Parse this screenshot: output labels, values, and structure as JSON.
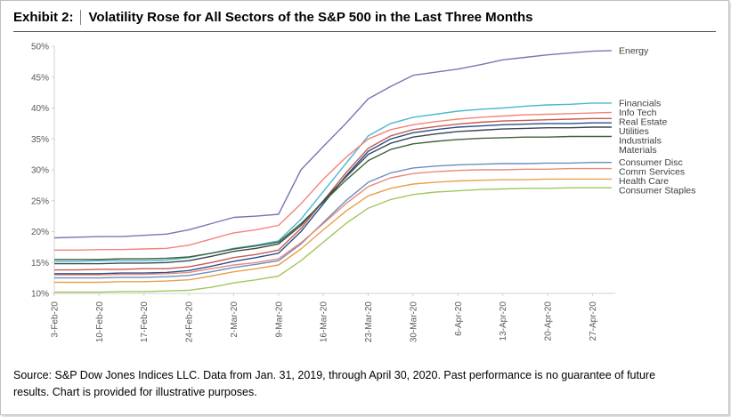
{
  "title": {
    "exhibit": "Exhibit 2:",
    "text": "Volatility Rose for All Sectors of the S&P 500 in the Last Three Months"
  },
  "footer": {
    "line1": "Source: S&P Dow Jones Indices LLC.  Data from Jan. 31, 2019, through April 30, 2020.  Past performance is no guarantee of future",
    "line2": "results.  Chart is provided for illustrative purposes."
  },
  "colors": {
    "axis": "#D0D0D0",
    "tick_text": "#595959",
    "series_label_text": "#3F3F3F",
    "title_rule": "#595959"
  },
  "chart_data": {
    "type": "line",
    "title": "Volatility Rose for All Sectors of the S&P 500 in the Last Three Months",
    "xlabel": "",
    "ylabel": "",
    "grid": false,
    "legend_position": "right-of-lines",
    "ylim": [
      10,
      50
    ],
    "xmax": 87,
    "y_ticks": [
      {
        "label": "10%",
        "value": 10
      },
      {
        "label": "15%",
        "value": 15
      },
      {
        "label": "20%",
        "value": 20
      },
      {
        "label": "25%",
        "value": 25
      },
      {
        "label": "30%",
        "value": 30
      },
      {
        "label": "35%",
        "value": 35
      },
      {
        "label": "40%",
        "value": 40
      },
      {
        "label": "45%",
        "value": 45
      },
      {
        "label": "50%",
        "value": 50
      }
    ],
    "x_ticks": [
      {
        "label": "3-Feb-20",
        "day": 0
      },
      {
        "label": "10-Feb-20",
        "day": 7
      },
      {
        "label": "17-Feb-20",
        "day": 14
      },
      {
        "label": "24-Feb-20",
        "day": 21
      },
      {
        "label": "2-Mar-20",
        "day": 28
      },
      {
        "label": "9-Mar-20",
        "day": 35
      },
      {
        "label": "16-Mar-20",
        "day": 42
      },
      {
        "label": "23-Mar-20",
        "day": 49
      },
      {
        "label": "30-Mar-20",
        "day": 56
      },
      {
        "label": "6-Apr-20",
        "day": 63
      },
      {
        "label": "13-Apr-20",
        "day": 70
      },
      {
        "label": "20-Apr-20",
        "day": 77
      },
      {
        "label": "27-Apr-20",
        "day": 84
      }
    ],
    "x": [
      0,
      3.5,
      7,
      10.5,
      14,
      17.5,
      21,
      24.5,
      28,
      31.5,
      35,
      38.5,
      42,
      45.5,
      49,
      52.5,
      56,
      59.5,
      63,
      66.5,
      70,
      73.5,
      77,
      80.5,
      84,
      87
    ],
    "series": [
      {
        "name": "Energy",
        "color": "#8172B2",
        "values": [
          19.0,
          19.1,
          19.2,
          19.2,
          19.4,
          19.6,
          20.3,
          21.3,
          22.3,
          22.5,
          22.8,
          30.0,
          33.8,
          37.5,
          41.5,
          43.5,
          45.3,
          45.8,
          46.3,
          47.0,
          47.8,
          48.2,
          48.6,
          48.9,
          49.2,
          49.3
        ]
      },
      {
        "name": "Financials",
        "color": "#4BB8CE",
        "values": [
          15.2,
          15.2,
          15.3,
          15.3,
          15.3,
          15.4,
          15.8,
          16.5,
          17.3,
          17.8,
          18.5,
          22.0,
          26.5,
          31.0,
          35.5,
          37.5,
          38.5,
          39.0,
          39.5,
          39.8,
          40.0,
          40.3,
          40.5,
          40.6,
          40.8,
          40.8
        ]
      },
      {
        "name": "Info Tech",
        "color": "#F5837B",
        "values": [
          17.0,
          17.0,
          17.1,
          17.1,
          17.2,
          17.3,
          17.8,
          18.8,
          19.8,
          20.3,
          21.0,
          24.5,
          28.5,
          32.0,
          35.0,
          36.5,
          37.3,
          37.8,
          38.2,
          38.5,
          38.7,
          38.9,
          39.0,
          39.1,
          39.2,
          39.3
        ]
      },
      {
        "name": "Real Estate",
        "color": "#C65B4E",
        "values": [
          13.8,
          13.8,
          13.9,
          13.9,
          14.0,
          14.0,
          14.3,
          15.0,
          15.8,
          16.3,
          17.0,
          20.5,
          25.0,
          29.5,
          33.5,
          35.5,
          36.5,
          37.0,
          37.4,
          37.7,
          37.9,
          38.0,
          38.1,
          38.2,
          38.3,
          38.3
        ]
      },
      {
        "name": "Utilities",
        "color": "#27508C",
        "values": [
          13.2,
          13.2,
          13.2,
          13.3,
          13.3,
          13.4,
          13.7,
          14.4,
          15.2,
          15.8,
          16.5,
          20.0,
          24.5,
          29.0,
          33.0,
          35.0,
          36.0,
          36.5,
          36.9,
          37.1,
          37.3,
          37.4,
          37.5,
          37.5,
          37.6,
          37.6
        ]
      },
      {
        "name": "Industrials",
        "color": "#39474E",
        "values": [
          14.8,
          14.8,
          14.8,
          14.9,
          14.9,
          15.0,
          15.3,
          16.0,
          16.8,
          17.3,
          18.0,
          21.0,
          25.0,
          28.8,
          32.5,
          34.3,
          35.3,
          35.8,
          36.2,
          36.4,
          36.6,
          36.7,
          36.8,
          36.8,
          36.9,
          36.9
        ]
      },
      {
        "name": "Materials",
        "color": "#40633C",
        "values": [
          15.5,
          15.5,
          15.5,
          15.6,
          15.6,
          15.7,
          15.9,
          16.5,
          17.2,
          17.7,
          18.3,
          21.3,
          24.8,
          28.3,
          31.5,
          33.3,
          34.2,
          34.6,
          34.9,
          35.1,
          35.2,
          35.3,
          35.3,
          35.4,
          35.4,
          35.4
        ]
      },
      {
        "name": "Consumer Disc",
        "color": "#6C8EBF",
        "values": [
          12.5,
          12.5,
          12.5,
          12.6,
          12.6,
          12.7,
          12.9,
          13.5,
          14.2,
          14.7,
          15.3,
          18.0,
          21.5,
          25.0,
          28.0,
          29.5,
          30.3,
          30.6,
          30.8,
          30.9,
          31.0,
          31.0,
          31.1,
          31.1,
          31.2,
          31.2
        ]
      },
      {
        "name": "Comm Services",
        "color": "#E98B7D",
        "values": [
          13.0,
          13.0,
          13.0,
          13.1,
          13.1,
          13.2,
          13.4,
          14.0,
          14.6,
          15.0,
          15.6,
          18.2,
          21.3,
          24.5,
          27.3,
          28.7,
          29.4,
          29.7,
          29.9,
          30.0,
          30.0,
          30.1,
          30.1,
          30.2,
          30.2,
          30.2
        ]
      },
      {
        "name": "Health Care",
        "color": "#E8A04C",
        "values": [
          11.8,
          11.8,
          11.8,
          11.9,
          11.9,
          12.0,
          12.2,
          12.8,
          13.5,
          14.0,
          14.6,
          17.2,
          20.3,
          23.3,
          25.8,
          27.0,
          27.7,
          28.0,
          28.2,
          28.3,
          28.4,
          28.4,
          28.5,
          28.5,
          28.5,
          28.5
        ]
      },
      {
        "name": "Consumer Staples",
        "color": "#A4C661",
        "values": [
          10.2,
          10.2,
          10.2,
          10.3,
          10.3,
          10.4,
          10.5,
          11.0,
          11.7,
          12.2,
          12.8,
          15.3,
          18.3,
          21.3,
          23.8,
          25.2,
          26.0,
          26.4,
          26.6,
          26.8,
          26.9,
          27.0,
          27.0,
          27.1,
          27.1,
          27.1
        ]
      }
    ]
  }
}
